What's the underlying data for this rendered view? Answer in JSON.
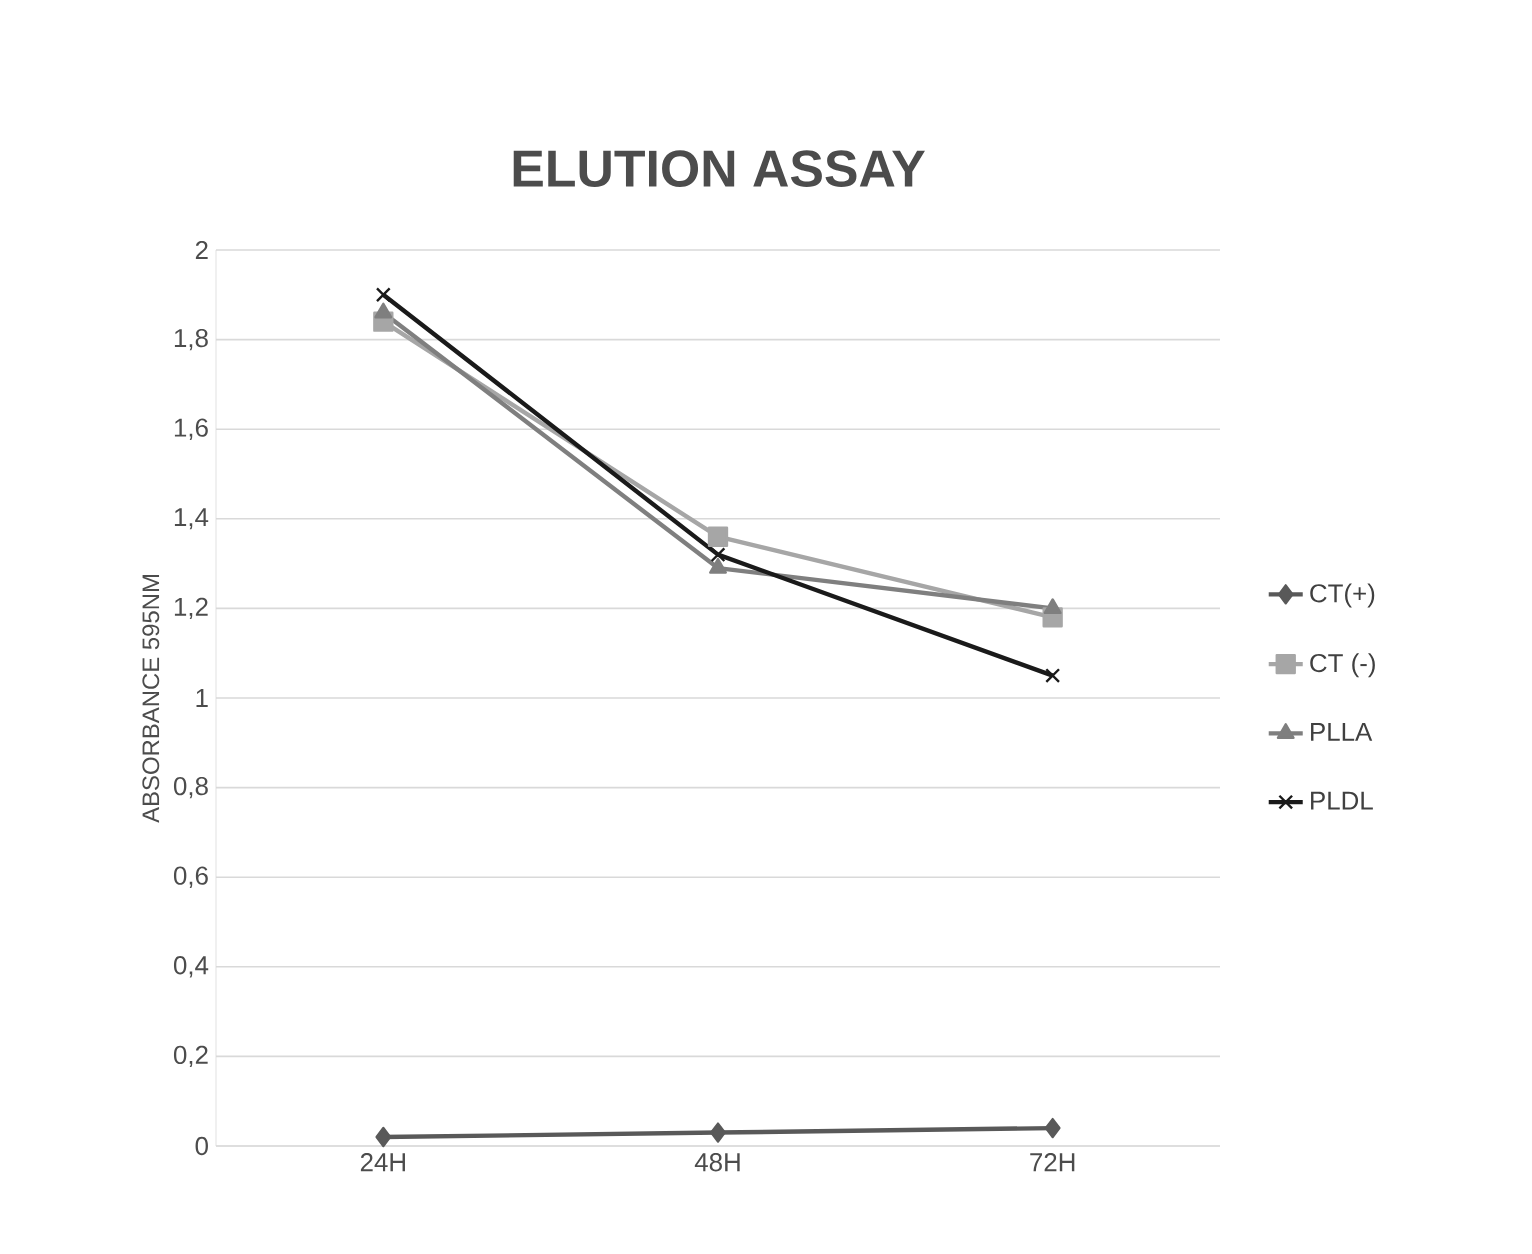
{
  "chart_data": {
    "type": "line",
    "title": "ELUTION ASSAY",
    "ylabel": "ABSORBANCE 595NM",
    "categories": [
      "24H",
      "48H",
      "72H"
    ],
    "series": [
      {
        "name": "CT(+)",
        "color": "#595959",
        "marker": "diamond",
        "values": [
          0.02,
          0.03,
          0.04
        ]
      },
      {
        "name": "CT (-)",
        "color": "#a6a6a6",
        "marker": "square",
        "values": [
          1.84,
          1.36,
          1.18
        ]
      },
      {
        "name": "PLLA",
        "color": "#7f7f7f",
        "marker": "triangle",
        "values": [
          1.86,
          1.29,
          1.2
        ]
      },
      {
        "name": "PLDL",
        "color": "#1a1a1a",
        "marker": "cross",
        "values": [
          1.9,
          1.32,
          1.05
        ]
      }
    ],
    "ylim": [
      0,
      2
    ],
    "yticks": [
      0,
      {
        "value": 0.2,
        "label": "0,2"
      },
      {
        "value": 0.4,
        "label": "0,4"
      },
      {
        "value": 0.6,
        "label": "0,6"
      },
      {
        "value": 0.8,
        "label": "0,8"
      },
      1,
      {
        "value": 1.2,
        "label": "1,2"
      },
      {
        "value": 1.4,
        "label": "1,4"
      },
      {
        "value": 1.6,
        "label": "1,6"
      },
      {
        "value": 1.8,
        "label": "1,8"
      },
      2
    ],
    "grid": "y",
    "legend": "right",
    "line_style": "solid"
  }
}
